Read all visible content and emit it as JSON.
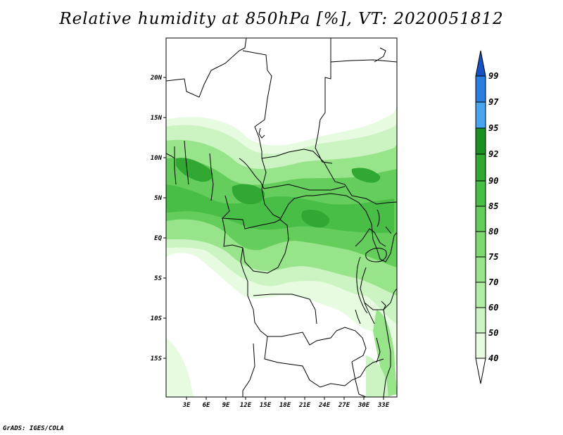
{
  "title": "Relative humidity at 850hPa [%], VT: 2020051812",
  "credit": "GrADS: IGES/COLA",
  "map": {
    "lat_ticks": [
      "20N",
      "15N",
      "10N",
      "5N",
      "EQ",
      "5S",
      "10S",
      "15S"
    ],
    "lon_ticks": [
      "3E",
      "6E",
      "9E",
      "12E",
      "15E",
      "18E",
      "21E",
      "24E",
      "27E",
      "30E",
      "33E"
    ]
  },
  "colorbar": {
    "levels": [
      "40",
      "50",
      "60",
      "70",
      "75",
      "80",
      "85",
      "90",
      "92",
      "95",
      "97",
      "99"
    ],
    "colors": [
      "#ffffff",
      "#e6fbe0",
      "#cbf4c2",
      "#b1eca5",
      "#98e48a",
      "#7fd872",
      "#64cd5b",
      "#48be46",
      "#30a831",
      "#1b8f22",
      "#4aa3ef",
      "#2a7ee2",
      "#1452c4"
    ]
  }
}
